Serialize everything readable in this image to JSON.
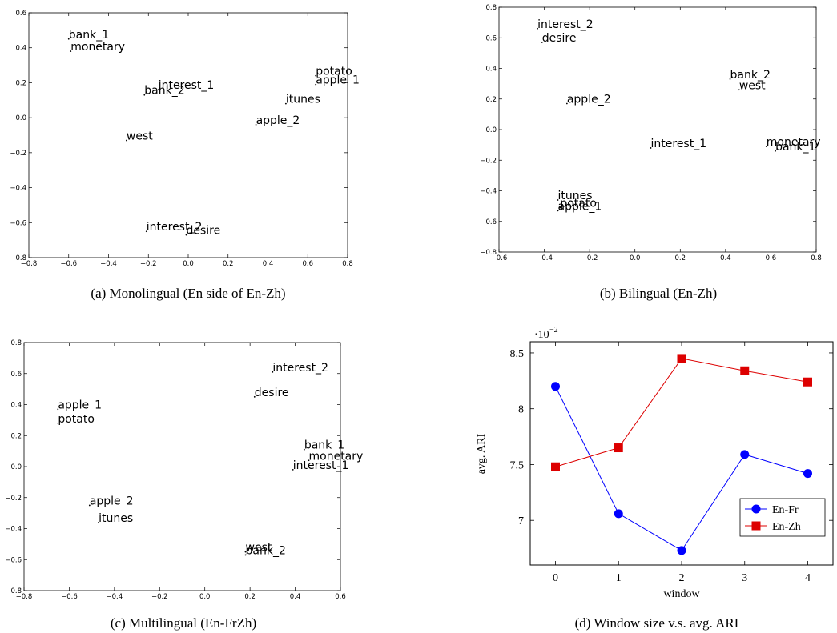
{
  "chart_data": [
    {
      "type": "scatter",
      "caption": "(a) Monolingual (En side of En-Zh)",
      "xlim": [
        -0.8,
        0.8
      ],
      "ylim": [
        -0.8,
        0.6
      ],
      "xticks": [
        -0.8,
        -0.6,
        -0.4,
        -0.2,
        0.0,
        0.2,
        0.4,
        0.6,
        0.8
      ],
      "yticks": [
        -0.8,
        -0.6,
        -0.4,
        -0.2,
        0.0,
        0.2,
        0.4,
        0.6
      ],
      "xtick_labels": [
        "−0.8",
        "−0.6",
        "−0.4",
        "−0.2",
        "0.0",
        "0.2",
        "0.4",
        "0.6",
        "0.8"
      ],
      "ytick_labels": [
        "−0.8",
        "−0.6",
        "−0.4",
        "−0.2",
        "0.0",
        "0.2",
        "0.4",
        "0.6"
      ],
      "points": [
        {
          "label": "bank_1",
          "x": -0.6,
          "y": 0.45
        },
        {
          "label": "monetary",
          "x": -0.59,
          "y": 0.38
        },
        {
          "label": "interest_1",
          "x": -0.15,
          "y": 0.16
        },
        {
          "label": "bank_2",
          "x": -0.22,
          "y": 0.13
        },
        {
          "label": "potato",
          "x": 0.64,
          "y": 0.24
        },
        {
          "label": "apple_1",
          "x": 0.64,
          "y": 0.19
        },
        {
          "label": "itunes",
          "x": 0.49,
          "y": 0.08
        },
        {
          "label": "apple_2",
          "x": 0.34,
          "y": -0.04
        },
        {
          "label": "west",
          "x": -0.31,
          "y": -0.13
        },
        {
          "label": "interest_2",
          "x": -0.21,
          "y": -0.65
        },
        {
          "label": "desire",
          "x": -0.01,
          "y": -0.67
        }
      ]
    },
    {
      "type": "scatter",
      "caption": "(b) Bilingual (En-Zh)",
      "xlim": [
        -0.6,
        0.8
      ],
      "ylim": [
        -0.8,
        0.8
      ],
      "xticks": [
        -0.6,
        -0.4,
        -0.2,
        0.0,
        0.2,
        0.4,
        0.6,
        0.8
      ],
      "yticks": [
        -0.8,
        -0.6,
        -0.4,
        -0.2,
        0.0,
        0.2,
        0.4,
        0.6,
        0.8
      ],
      "xtick_labels": [
        "−0.6",
        "−0.4",
        "−0.2",
        "0.0",
        "0.2",
        "0.4",
        "0.6",
        "0.8"
      ],
      "ytick_labels": [
        "−0.8",
        "−0.6",
        "−0.4",
        "−0.2",
        "0.0",
        "0.2",
        "0.4",
        "0.6",
        "0.8"
      ],
      "points": [
        {
          "label": "interest_2",
          "x": -0.43,
          "y": 0.66
        },
        {
          "label": "desire",
          "x": -0.41,
          "y": 0.57
        },
        {
          "label": "bank_2",
          "x": 0.42,
          "y": 0.33
        },
        {
          "label": "west",
          "x": 0.46,
          "y": 0.26
        },
        {
          "label": "apple_2",
          "x": -0.3,
          "y": 0.17
        },
        {
          "label": "interest_1",
          "x": 0.07,
          "y": -0.12
        },
        {
          "label": "monetary",
          "x": 0.58,
          "y": -0.11
        },
        {
          "label": "bank_1",
          "x": 0.62,
          "y": -0.14
        },
        {
          "label": "itunes",
          "x": -0.34,
          "y": -0.46
        },
        {
          "label": "potato",
          "x": -0.33,
          "y": -0.51
        },
        {
          "label": "apple_1",
          "x": -0.34,
          "y": -0.53
        }
      ]
    },
    {
      "type": "scatter",
      "caption": "(c) Multilingual (En-FrZh)",
      "xlim": [
        -0.8,
        0.6
      ],
      "ylim": [
        -0.8,
        0.8
      ],
      "xticks": [
        -0.8,
        -0.6,
        -0.4,
        -0.2,
        0.0,
        0.2,
        0.4,
        0.6
      ],
      "yticks": [
        -0.8,
        -0.6,
        -0.4,
        -0.2,
        0.0,
        0.2,
        0.4,
        0.6,
        0.8
      ],
      "xtick_labels": [
        "−0.8",
        "−0.6",
        "−0.4",
        "−0.2",
        "0.0",
        "0.2",
        "0.4",
        "0.6"
      ],
      "ytick_labels": [
        "−0.8",
        "−0.6",
        "−0.4",
        "−0.2",
        "0.0",
        "0.2",
        "0.4",
        "0.6",
        "0.8"
      ],
      "points": [
        {
          "label": "interest_2",
          "x": 0.3,
          "y": 0.61
        },
        {
          "label": "desire",
          "x": 0.22,
          "y": 0.45
        },
        {
          "label": "apple_1",
          "x": -0.65,
          "y": 0.37
        },
        {
          "label": "potato",
          "x": -0.65,
          "y": 0.28
        },
        {
          "label": "bank_1",
          "x": 0.44,
          "y": 0.11
        },
        {
          "label": "monetary",
          "x": 0.46,
          "y": 0.04
        },
        {
          "label": "interest_1",
          "x": 0.39,
          "y": -0.02
        },
        {
          "label": "apple_2",
          "x": -0.51,
          "y": -0.25
        },
        {
          "label": "itunes",
          "x": -0.47,
          "y": -0.36
        },
        {
          "label": "west",
          "x": 0.18,
          "y": -0.55
        },
        {
          "label": "bank_2",
          "x": 0.18,
          "y": -0.57
        }
      ]
    },
    {
      "type": "line",
      "caption": "(d) Window size v.s. avg. ARI",
      "xlabel": "window",
      "ylabel": "avg. ARI",
      "scale_base": "·10",
      "scale_exp": "−2",
      "x": [
        0,
        1,
        2,
        3,
        4
      ],
      "xlim": [
        -0.4,
        4.4
      ],
      "ylim": [
        6.6,
        8.6
      ],
      "xticks": [
        0,
        1,
        2,
        3,
        4
      ],
      "xtick_labels": [
        "0",
        "1",
        "2",
        "3",
        "4"
      ],
      "yticks": [
        7,
        7.5,
        8,
        8.5
      ],
      "ytick_labels": [
        "7",
        "7.5",
        "8",
        "8.5"
      ],
      "legend_position": "bottom-right",
      "series": [
        {
          "name": "En-Fr",
          "color": "#0000ff",
          "marker": "circle",
          "values": [
            8.2,
            7.06,
            6.73,
            7.59,
            7.42
          ]
        },
        {
          "name": "En-Zh",
          "color": "#dd0000",
          "marker": "square",
          "values": [
            7.48,
            7.65,
            8.45,
            8.34,
            8.24
          ]
        }
      ]
    }
  ]
}
